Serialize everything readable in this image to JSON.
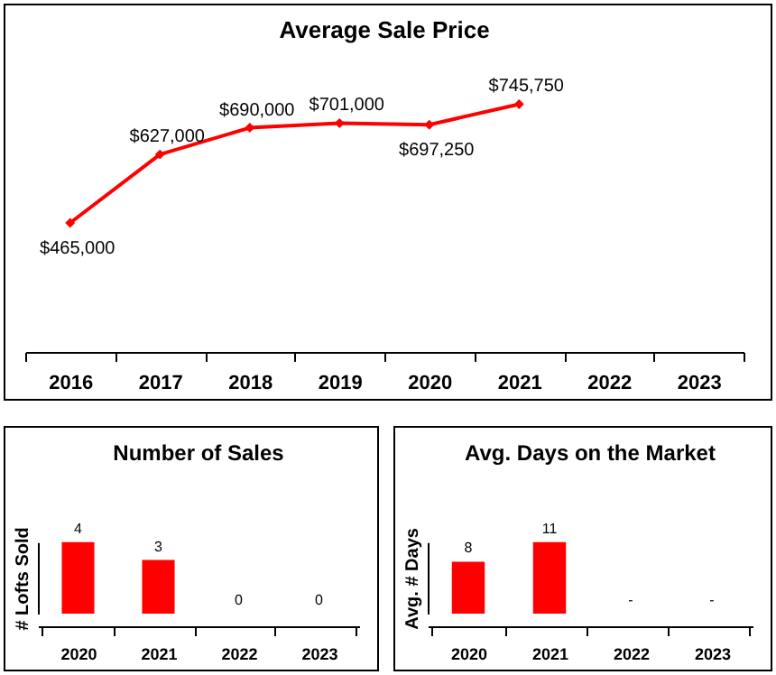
{
  "chart_data": [
    {
      "type": "line",
      "title": "Average Sale Price",
      "categories": [
        "2016",
        "2017",
        "2018",
        "2019",
        "2020",
        "2021",
        "2022",
        "2023"
      ],
      "series": [
        {
          "color": "#ff0000",
          "values": [
            465000,
            627000,
            690000,
            701000,
            697250,
            745750,
            null,
            null
          ],
          "value_labels": [
            "$465,000",
            "$627,000",
            "$690,000",
            "$701,000",
            "$697,250",
            "$745,750",
            null,
            null
          ]
        }
      ],
      "marker": "diamond",
      "tick_labels": "x"
    },
    {
      "type": "bar",
      "title": "Number of Sales",
      "ylabel": "# Lofts Sold",
      "categories": [
        "2020",
        "2021",
        "2022",
        "2023"
      ],
      "values": [
        4,
        3,
        0,
        0
      ],
      "color": "#ff0000",
      "data_labels": true,
      "tick_labels": "x"
    },
    {
      "type": "bar",
      "title": "Avg. Days on the Market",
      "ylabel": "Avg. # Days",
      "categories": [
        "2020",
        "2021",
        "2022",
        "2023"
      ],
      "values": [
        8,
        11,
        null,
        null
      ],
      "value_labels": [
        "8",
        "11",
        "-",
        "-"
      ],
      "color": "#ff0000",
      "tick_labels": "x"
    }
  ]
}
